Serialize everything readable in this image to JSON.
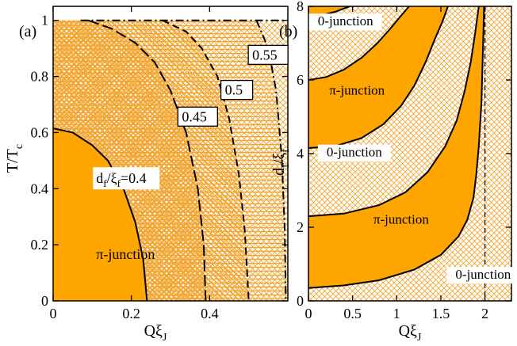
{
  "colors": {
    "fill": "#FFA500",
    "hatch": "#F2A531",
    "line": "#000000"
  },
  "chart_data": [
    {
      "panel_label": "(a)",
      "type": "area",
      "xlabel": "Qξ",
      "xlabel_sub": "J",
      "ylabel": "T/T",
      "ylabel_sub": "c",
      "xlim": [
        0,
        0.6
      ],
      "ylim": [
        0,
        1.05
      ],
      "x_ticks": [
        0,
        0.2,
        0.4
      ],
      "x_tick_labels": [
        "0",
        "0.2",
        "0.4"
      ],
      "y_ticks": [
        0,
        0.2,
        0.4,
        0.6,
        0.8,
        1
      ],
      "y_tick_labels": [
        "0",
        "0.2",
        "0.4",
        "0.6",
        "0.8",
        "1"
      ],
      "grid": false,
      "series": [
        {
          "curve": "0.4",
          "line_style": "solid",
          "boundary_T0_x": 0.24,
          "x": [
            0,
            0.05,
            0.1,
            0.14,
            0.18,
            0.21,
            0.23,
            0.24
          ],
          "y": [
            0.615,
            0.6,
            0.555,
            0.5,
            0.4,
            0.28,
            0.15,
            0
          ]
        },
        {
          "curve": "0.45",
          "line_style": "long-dash",
          "boundary_T0_x": 0.39,
          "x": [
            0.09,
            0.15,
            0.21,
            0.26,
            0.3,
            0.34,
            0.37,
            0.385,
            0.39
          ],
          "y": [
            1.0,
            0.97,
            0.92,
            0.85,
            0.75,
            0.6,
            0.4,
            0.2,
            0
          ]
        },
        {
          "curve": "0.5",
          "line_style": "dash",
          "boundary_T0_x": 0.5,
          "x": [
            0.28,
            0.34,
            0.38,
            0.42,
            0.45,
            0.475,
            0.49,
            0.5
          ],
          "y": [
            1.0,
            0.96,
            0.9,
            0.8,
            0.65,
            0.45,
            0.25,
            0
          ]
        },
        {
          "curve": "0.55",
          "line_style": "dash-dot",
          "boundary_T0_x": 0.595,
          "x": [
            0.52,
            0.55,
            0.57,
            0.585,
            0.592,
            0.595
          ],
          "y": [
            1.0,
            0.9,
            0.75,
            0.5,
            0.25,
            0
          ]
        }
      ],
      "annotations": [
        {
          "text": "0.55",
          "x": 0.505,
          "y": 0.86
        },
        {
          "text": "0.5",
          "x": 0.435,
          "y": 0.735
        },
        {
          "text": "0.45",
          "x": 0.325,
          "y": 0.64
        },
        {
          "label_main": "d",
          "label_sub": "f",
          "label_mid": "/ξ",
          "label_sub2": "f",
          "label_tail": "=0.4",
          "x": 0.11,
          "y": 0.42
        },
        {
          "text": "π-junction",
          "x": 0.11,
          "y": 0.15
        }
      ],
      "top_line": {
        "style": "dash-dot",
        "y": 1.0
      }
    },
    {
      "panel_label": "(b)",
      "type": "area",
      "xlabel": "Qξ",
      "xlabel_sub": "J",
      "ylabel": "d",
      "ylabel_sub": "f",
      "ylabel_mid": "/ξ",
      "ylabel_sub2": "f",
      "xlim": [
        0,
        2.3
      ],
      "ylim": [
        0,
        8
      ],
      "x_ticks": [
        0,
        0.5,
        1,
        1.5,
        2
      ],
      "x_tick_labels": [
        "0",
        "0.5",
        "1",
        "1.5",
        "2"
      ],
      "y_ticks": [
        0,
        2,
        4,
        6,
        8
      ],
      "y_tick_labels": [
        "0",
        "2",
        "4",
        "6",
        "8"
      ],
      "grid": false,
      "vertical_dashed_x": 2.0,
      "series": [
        {
          "curve": "c1",
          "x": [
            0,
            0.4,
            0.8,
            1.2,
            1.5,
            1.7,
            1.8,
            1.87,
            1.9,
            1.93,
            1.96,
            1.99
          ],
          "y": [
            0.35,
            0.42,
            0.56,
            0.85,
            1.25,
            1.75,
            2.2,
            2.8,
            3.4,
            4.2,
            5.4,
            8
          ]
        },
        {
          "curve": "c2",
          "x": [
            0,
            0.4,
            0.8,
            1.1,
            1.35,
            1.55,
            1.68,
            1.77,
            1.84,
            1.89,
            1.93
          ],
          "y": [
            2.3,
            2.37,
            2.6,
            2.95,
            3.5,
            4.2,
            4.9,
            5.7,
            6.5,
            7.3,
            8
          ]
        },
        {
          "curve": "c3",
          "x": [
            0,
            0.3,
            0.6,
            0.85,
            1.05,
            1.2,
            1.33,
            1.43,
            1.52,
            1.58
          ],
          "y": [
            4.15,
            4.2,
            4.42,
            4.8,
            5.3,
            5.85,
            6.5,
            7.1,
            7.6,
            8
          ]
        },
        {
          "curve": "c4",
          "x": [
            0,
            0.2,
            0.4,
            0.6,
            0.78,
            0.93,
            1.05,
            1.14
          ],
          "y": [
            6.0,
            6.08,
            6.28,
            6.6,
            7.0,
            7.4,
            7.75,
            8
          ]
        },
        {
          "curve": "c5",
          "x": [
            0,
            0.15,
            0.3,
            0.4,
            0.47
          ],
          "y": [
            7.72,
            7.76,
            7.85,
            7.94,
            8
          ]
        }
      ],
      "annotations": [
        {
          "text": "0-junction",
          "x": 0.42,
          "y": 7.48
        },
        {
          "text": "π-junction",
          "x": 0.55,
          "y": 5.6
        },
        {
          "text": "0-junction",
          "x": 0.52,
          "y": 3.92
        },
        {
          "text": "π-junction",
          "x": 1.05,
          "y": 2.1
        },
        {
          "text": "0-junction",
          "x": 1.98,
          "y": 0.6
        }
      ]
    }
  ]
}
